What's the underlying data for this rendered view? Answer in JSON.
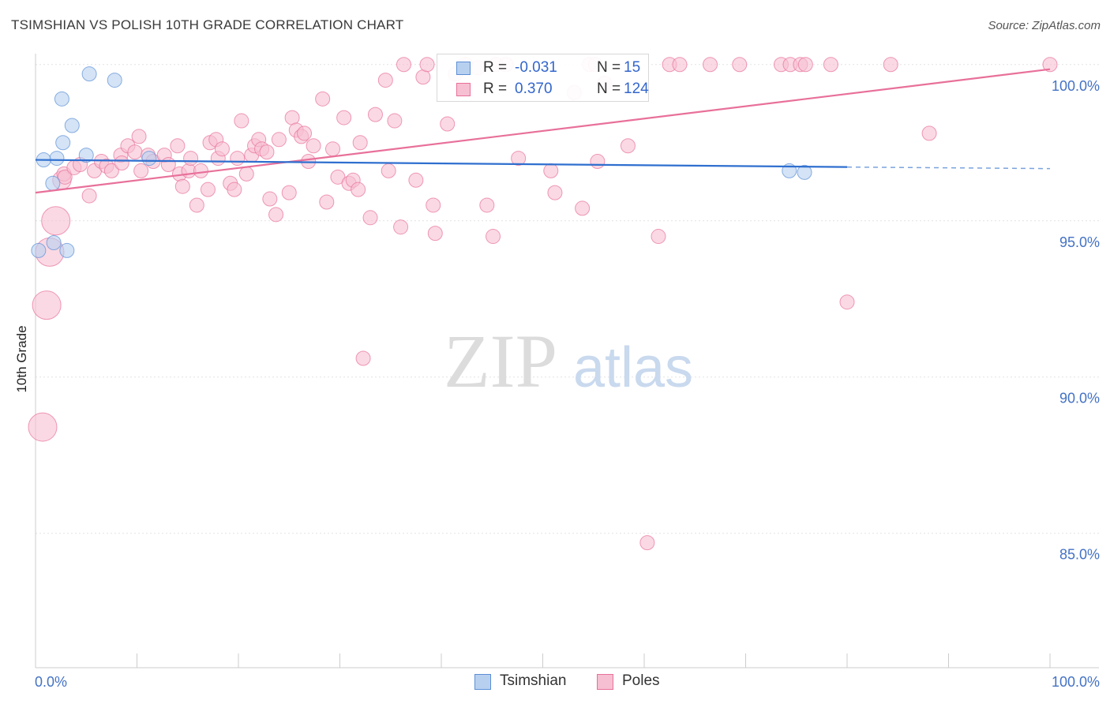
{
  "title": "TSIMSHIAN VS POLISH 10TH GRADE CORRELATION CHART",
  "source": "Source: ZipAtlas.com",
  "watermark": {
    "zip": "ZIP",
    "atlas": "atlas"
  },
  "colors": {
    "tsimshian": "#5b8fd6",
    "tsimshian_fill": "#b8d0f0",
    "poles": "#e8709a",
    "poles_fill": "#f6bfd2",
    "accent": "#3366cc"
  },
  "stats": {
    "tsimshian": {
      "r_label": "R =",
      "r": "-0.031",
      "n_label": "N =",
      "n": "15"
    },
    "poles": {
      "r_label": "R =",
      "r": "0.370",
      "n_label": "N =",
      "n": "124"
    }
  },
  "legend": {
    "tsimshian": "Tsimshian",
    "poles": "Poles"
  },
  "chart_data": {
    "type": "scatter",
    "xlabel": "",
    "ylabel": "10th Grade",
    "xlim": [
      0,
      100
    ],
    "ylim": [
      80.7,
      100.55
    ],
    "x_tick_labels": [
      "0.0%",
      "100.0%"
    ],
    "y_ticks": [
      85,
      90,
      95,
      100
    ],
    "y_tick_labels": [
      "85.0%",
      "90.0%",
      "95.0%",
      "100.0%"
    ],
    "series": [
      {
        "name": "Tsimshian",
        "points": [
          [
            0.3,
            94.05,
            1
          ],
          [
            1.7,
            96.2,
            1
          ],
          [
            1.8,
            94.3,
            1
          ],
          [
            2.1,
            97.0,
            1
          ],
          [
            2.6,
            98.9,
            1
          ],
          [
            2.7,
            97.5,
            1
          ],
          [
            3.1,
            94.05,
            1
          ],
          [
            3.6,
            98.05,
            1
          ],
          [
            5.0,
            97.1,
            1
          ],
          [
            5.3,
            99.7,
            1
          ],
          [
            7.8,
            99.5,
            1
          ],
          [
            11.2,
            97.0,
            1
          ],
          [
            74.3,
            96.6,
            1
          ],
          [
            75.8,
            96.55,
            1
          ],
          [
            0.8,
            96.95,
            1
          ]
        ],
        "trend": {
          "x": [
            0,
            80
          ],
          "y": [
            96.95,
            96.72
          ],
          "dashed_to": [
            100,
            96.67
          ]
        }
      },
      {
        "name": "Poles",
        "points": [
          [
            0.7,
            88.4,
            2
          ],
          [
            1.1,
            92.3,
            2
          ],
          [
            1.4,
            94.0,
            2
          ],
          [
            2.0,
            95.0,
            2
          ],
          [
            2.6,
            96.3,
            1.3
          ],
          [
            2.8,
            96.5,
            1
          ],
          [
            2.9,
            96.4,
            1
          ],
          [
            3.8,
            96.7,
            1
          ],
          [
            4.4,
            96.8,
            1
          ],
          [
            5.3,
            95.8,
            1
          ],
          [
            5.8,
            96.6,
            1
          ],
          [
            6.5,
            96.9,
            1
          ],
          [
            7.0,
            96.75,
            1
          ],
          [
            7.5,
            96.6,
            1
          ],
          [
            8.4,
            97.1,
            1
          ],
          [
            8.5,
            96.85,
            1
          ],
          [
            9.1,
            97.4,
            1
          ],
          [
            9.8,
            97.2,
            1
          ],
          [
            10.2,
            97.7,
            1
          ],
          [
            10.4,
            96.6,
            1
          ],
          [
            11.1,
            97.1,
            1
          ],
          [
            11.6,
            96.9,
            1
          ],
          [
            12.7,
            97.1,
            1
          ],
          [
            13.1,
            96.8,
            1
          ],
          [
            14.0,
            97.4,
            1
          ],
          [
            14.2,
            96.5,
            1
          ],
          [
            14.5,
            96.1,
            1
          ],
          [
            15.1,
            96.6,
            1
          ],
          [
            15.3,
            97.0,
            1
          ],
          [
            15.9,
            95.5,
            1
          ],
          [
            16.3,
            96.6,
            1
          ],
          [
            17.0,
            96.0,
            1
          ],
          [
            17.2,
            97.5,
            1
          ],
          [
            17.8,
            97.6,
            1
          ],
          [
            18.0,
            97.0,
            1
          ],
          [
            18.4,
            97.3,
            1
          ],
          [
            19.2,
            96.2,
            1
          ],
          [
            19.6,
            96.0,
            1
          ],
          [
            19.9,
            97.0,
            1
          ],
          [
            20.3,
            98.2,
            1
          ],
          [
            20.8,
            96.5,
            1
          ],
          [
            21.3,
            97.1,
            1
          ],
          [
            21.6,
            97.4,
            1
          ],
          [
            22.0,
            97.6,
            1
          ],
          [
            22.3,
            97.3,
            1
          ],
          [
            22.8,
            97.2,
            1
          ],
          [
            23.1,
            95.7,
            1
          ],
          [
            23.7,
            95.2,
            1
          ],
          [
            24.0,
            97.6,
            1
          ],
          [
            25.0,
            95.9,
            1
          ],
          [
            25.3,
            98.3,
            1
          ],
          [
            25.7,
            97.9,
            1
          ],
          [
            26.2,
            97.7,
            1
          ],
          [
            26.5,
            97.8,
            1
          ],
          [
            26.9,
            96.9,
            1
          ],
          [
            27.4,
            97.4,
            1
          ],
          [
            28.3,
            98.9,
            1
          ],
          [
            28.7,
            95.6,
            1
          ],
          [
            29.3,
            97.3,
            1
          ],
          [
            29.8,
            96.4,
            1
          ],
          [
            30.4,
            98.3,
            1
          ],
          [
            30.9,
            96.2,
            1
          ],
          [
            31.3,
            96.3,
            1
          ],
          [
            31.8,
            96.0,
            1
          ],
          [
            32.0,
            97.5,
            1
          ],
          [
            32.3,
            90.6,
            1
          ],
          [
            33.0,
            95.1,
            1
          ],
          [
            33.5,
            98.4,
            1
          ],
          [
            34.5,
            99.5,
            1
          ],
          [
            34.8,
            96.6,
            1
          ],
          [
            35.4,
            98.2,
            1
          ],
          [
            36.0,
            94.8,
            1
          ],
          [
            36.3,
            100.0,
            1
          ],
          [
            37.5,
            96.3,
            1
          ],
          [
            38.2,
            99.6,
            1
          ],
          [
            38.6,
            100.0,
            1
          ],
          [
            39.2,
            95.5,
            1
          ],
          [
            39.4,
            94.6,
            1
          ],
          [
            40.6,
            98.1,
            1
          ],
          [
            41.4,
            99.7,
            1
          ],
          [
            42.4,
            100.0,
            1
          ],
          [
            43.6,
            99.9,
            1
          ],
          [
            44.5,
            95.5,
            1
          ],
          [
            45.1,
            94.5,
            1
          ],
          [
            45.4,
            100.0,
            1
          ],
          [
            46.4,
            100.0,
            1
          ],
          [
            47.6,
            97.0,
            1
          ],
          [
            50.8,
            96.6,
            1
          ],
          [
            51.2,
            95.9,
            1
          ],
          [
            53.1,
            99.1,
            1
          ],
          [
            53.9,
            95.4,
            1
          ],
          [
            54.6,
            100.0,
            1
          ],
          [
            55.2,
            100.0,
            1
          ],
          [
            55.4,
            96.9,
            1
          ],
          [
            56.1,
            99.4,
            1
          ],
          [
            58.4,
            97.4,
            1
          ],
          [
            60.3,
            84.7,
            1
          ],
          [
            61.4,
            94.5,
            1
          ],
          [
            62.5,
            100.0,
            1
          ],
          [
            63.5,
            100.0,
            1
          ],
          [
            66.5,
            100.0,
            1
          ],
          [
            69.4,
            100.0,
            1
          ],
          [
            73.5,
            100.0,
            1
          ],
          [
            74.4,
            100.0,
            1
          ],
          [
            75.4,
            100.0,
            1
          ],
          [
            75.9,
            100.0,
            1
          ],
          [
            78.4,
            100.0,
            1
          ],
          [
            80.0,
            92.4,
            1
          ],
          [
            84.3,
            100.0,
            1
          ],
          [
            88.1,
            97.8,
            1
          ],
          [
            100.0,
            100.0,
            1
          ]
        ],
        "trend": {
          "x": [
            0,
            100
          ],
          "y": [
            95.9,
            99.85
          ]
        }
      }
    ]
  }
}
